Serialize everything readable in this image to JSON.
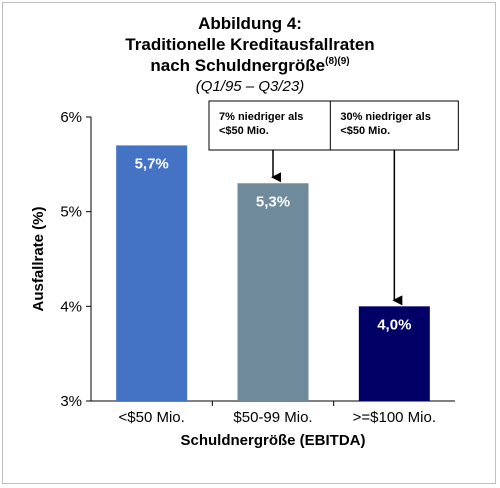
{
  "title": {
    "line1": "Abbildung 4:",
    "line2": "Traditionelle Kreditausfallraten",
    "line3": "nach Schuldnergröße",
    "footnote_refs": "(8)(9)",
    "period": "(Q1/95 – Q3/23)"
  },
  "chart_data": {
    "type": "bar",
    "categories": [
      "<$50 Mio.",
      "$50-99 Mio.",
      ">=$100 Mio."
    ],
    "values": [
      5.7,
      5.3,
      4.0
    ],
    "data_labels": [
      "5,7%",
      "5,3%",
      "4,0%"
    ],
    "ylim": [
      3,
      6
    ],
    "yticks": [
      3,
      4,
      5,
      6
    ],
    "ytick_labels": [
      "3%",
      "4%",
      "5%",
      "6%"
    ],
    "xlabel": "Schuldnergröße (EBITDA)",
    "ylabel": "Ausfallrate (%)",
    "bar_colors": [
      "#4472c4",
      "#6f8a9b",
      "#000066"
    ],
    "grid": false,
    "annotations": [
      {
        "category_index": 1,
        "line1": "7% niedriger als",
        "line2": "<$50 Mio."
      },
      {
        "category_index": 2,
        "line1": "30% niedriger als",
        "line2": "<$50 Mio."
      }
    ]
  }
}
